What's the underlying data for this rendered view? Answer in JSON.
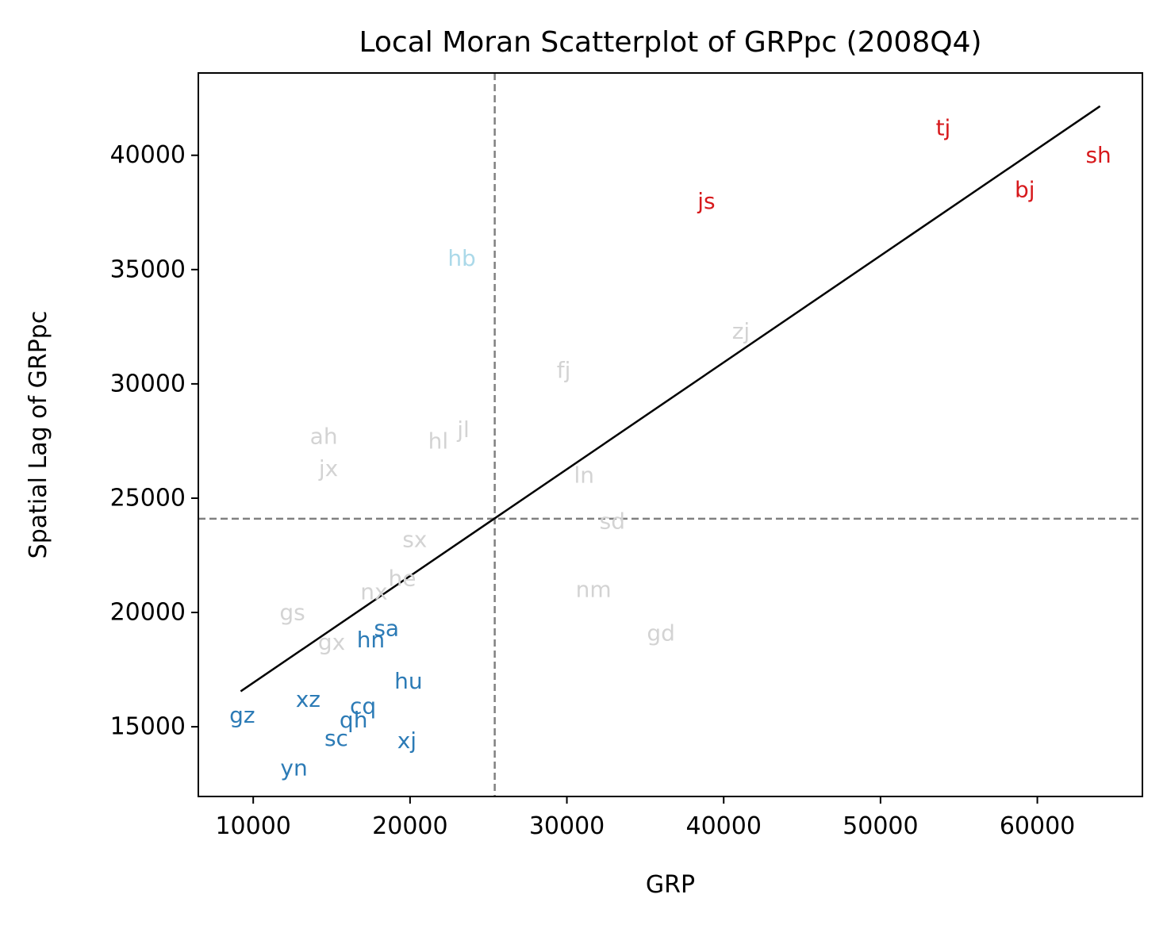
{
  "chart_data": {
    "type": "scatter",
    "title": "Local Moran Scatterplot of GRPpc (2008Q4)",
    "xlabel": "GRP",
    "ylabel": "Spatial Lag of GRPpc",
    "xlim": [
      6500,
      66700
    ],
    "ylim": [
      11950,
      43600
    ],
    "xticks": [
      10000,
      20000,
      30000,
      40000,
      50000,
      60000
    ],
    "yticks": [
      15000,
      20000,
      25000,
      30000,
      35000,
      40000
    ],
    "mean_x": 25400,
    "mean_y": 24100,
    "fit_line": [
      [
        9200,
        16550
      ],
      [
        64000,
        42150
      ]
    ],
    "colors": {
      "hh": "#d7191c",
      "lh": "#abd9e9",
      "ll": "#2c7bb6",
      "ns": "#d3d3d3",
      "ref_line": "#808080",
      "fit": "#000000"
    },
    "points": [
      {
        "label": "tj",
        "x": 54000,
        "y": 41200,
        "group": "hh"
      },
      {
        "label": "sh",
        "x": 63900,
        "y": 40000,
        "group": "hh"
      },
      {
        "label": "bj",
        "x": 59200,
        "y": 38500,
        "group": "hh"
      },
      {
        "label": "js",
        "x": 38900,
        "y": 38000,
        "group": "hh"
      },
      {
        "label": "hb",
        "x": 23300,
        "y": 35500,
        "group": "lh"
      },
      {
        "label": "zj",
        "x": 41100,
        "y": 32300,
        "group": "ns"
      },
      {
        "label": "fj",
        "x": 29800,
        "y": 30600,
        "group": "ns"
      },
      {
        "label": "jl",
        "x": 23400,
        "y": 28000,
        "group": "ns"
      },
      {
        "label": "ah",
        "x": 14500,
        "y": 27700,
        "group": "ns"
      },
      {
        "label": "hl",
        "x": 21800,
        "y": 27500,
        "group": "ns"
      },
      {
        "label": "jx",
        "x": 14800,
        "y": 26300,
        "group": "ns"
      },
      {
        "label": "ln",
        "x": 31100,
        "y": 26000,
        "group": "ns"
      },
      {
        "label": "sd",
        "x": 32900,
        "y": 24000,
        "group": "ns"
      },
      {
        "label": "sx",
        "x": 20300,
        "y": 23200,
        "group": "ns"
      },
      {
        "label": "he",
        "x": 19500,
        "y": 21500,
        "group": "ns"
      },
      {
        "label": "nx",
        "x": 17700,
        "y": 20900,
        "group": "ns"
      },
      {
        "label": "nm",
        "x": 31700,
        "y": 21000,
        "group": "ns"
      },
      {
        "label": "gs",
        "x": 12500,
        "y": 20000,
        "group": "ns"
      },
      {
        "label": "gd",
        "x": 36000,
        "y": 19100,
        "group": "ns"
      },
      {
        "label": "gx",
        "x": 15000,
        "y": 18700,
        "group": "ns"
      },
      {
        "label": "sa",
        "x": 18500,
        "y": 19300,
        "group": "ll"
      },
      {
        "label": "hn",
        "x": 17500,
        "y": 18800,
        "group": "ll"
      },
      {
        "label": "hu",
        "x": 19900,
        "y": 17000,
        "group": "ll"
      },
      {
        "label": "xz",
        "x": 13500,
        "y": 16200,
        "group": "ll"
      },
      {
        "label": "cq",
        "x": 17000,
        "y": 15900,
        "group": "ll"
      },
      {
        "label": "gz",
        "x": 9300,
        "y": 15500,
        "group": "ll"
      },
      {
        "label": "qh",
        "x": 16400,
        "y": 15300,
        "group": "ll"
      },
      {
        "label": "sc",
        "x": 15300,
        "y": 14500,
        "group": "ll"
      },
      {
        "label": "xj",
        "x": 19800,
        "y": 14400,
        "group": "ll"
      },
      {
        "label": "yn",
        "x": 12600,
        "y": 13200,
        "group": "ll"
      }
    ]
  }
}
